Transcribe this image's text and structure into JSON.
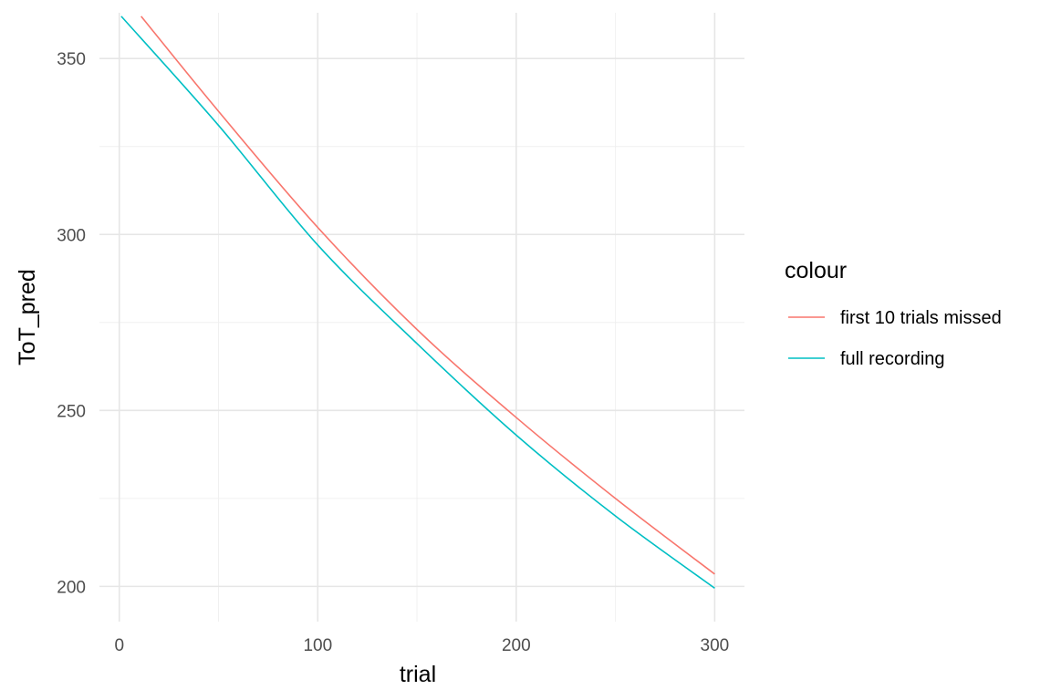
{
  "chart_data": {
    "type": "line",
    "xlabel": "trial",
    "ylabel": "ToT_pred",
    "xlim": [
      -10,
      315
    ],
    "ylim": [
      190,
      363
    ],
    "x_ticks": [
      0,
      100,
      200,
      300
    ],
    "x_minor": [
      50,
      150,
      250
    ],
    "y_ticks": [
      200,
      250,
      300,
      350
    ],
    "y_minor": [
      225,
      275,
      325
    ],
    "x_tick_labels": [
      "0",
      "100",
      "200",
      "300"
    ],
    "y_tick_labels": [
      "200",
      "250",
      "300",
      "350"
    ],
    "grid": true,
    "legend": {
      "title": "colour",
      "position": "right"
    },
    "series": [
      {
        "name": "first 10 trials missed",
        "color": "#F8766D",
        "x": [
          11,
          50,
          100,
          150,
          200,
          250,
          300
        ],
        "y": [
          362,
          335,
          302,
          273,
          248,
          225,
          203.5
        ]
      },
      {
        "name": "full recording",
        "color": "#00BFC4",
        "x": [
          1,
          50,
          100,
          150,
          200,
          250,
          300
        ],
        "y": [
          362,
          331,
          297,
          269,
          243,
          220,
          199.5
        ]
      }
    ]
  }
}
